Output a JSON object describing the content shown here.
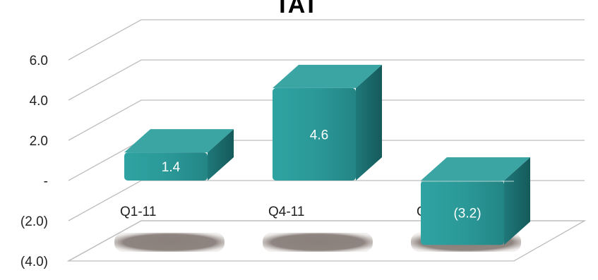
{
  "chart_data": {
    "type": "bar",
    "title": "TAT",
    "categories": [
      "Q1-11",
      "Q4-11",
      "Q1-12"
    ],
    "values": [
      1.4,
      4.6,
      -3.2
    ],
    "data_labels": [
      "1.4",
      "4.6",
      "(3.2)"
    ],
    "ylim": [
      -4.0,
      6.0
    ],
    "yticks": [
      6.0,
      4.0,
      2.0,
      0,
      -2.0,
      -4.0
    ],
    "ytick_labels": [
      "6.0",
      "4.0",
      "2.0",
      "-",
      "(2.0)",
      "(4.0)"
    ],
    "xlabel": "",
    "ylabel": "",
    "grid": true,
    "legend": "none",
    "style": "3d",
    "colors": {
      "bar_front": "#2b9a9a",
      "bar_top": "#3aa5a3",
      "bar_side": "#1d6f70",
      "shadow": "#8a7f7a",
      "grid": "#bdbdbd"
    }
  }
}
